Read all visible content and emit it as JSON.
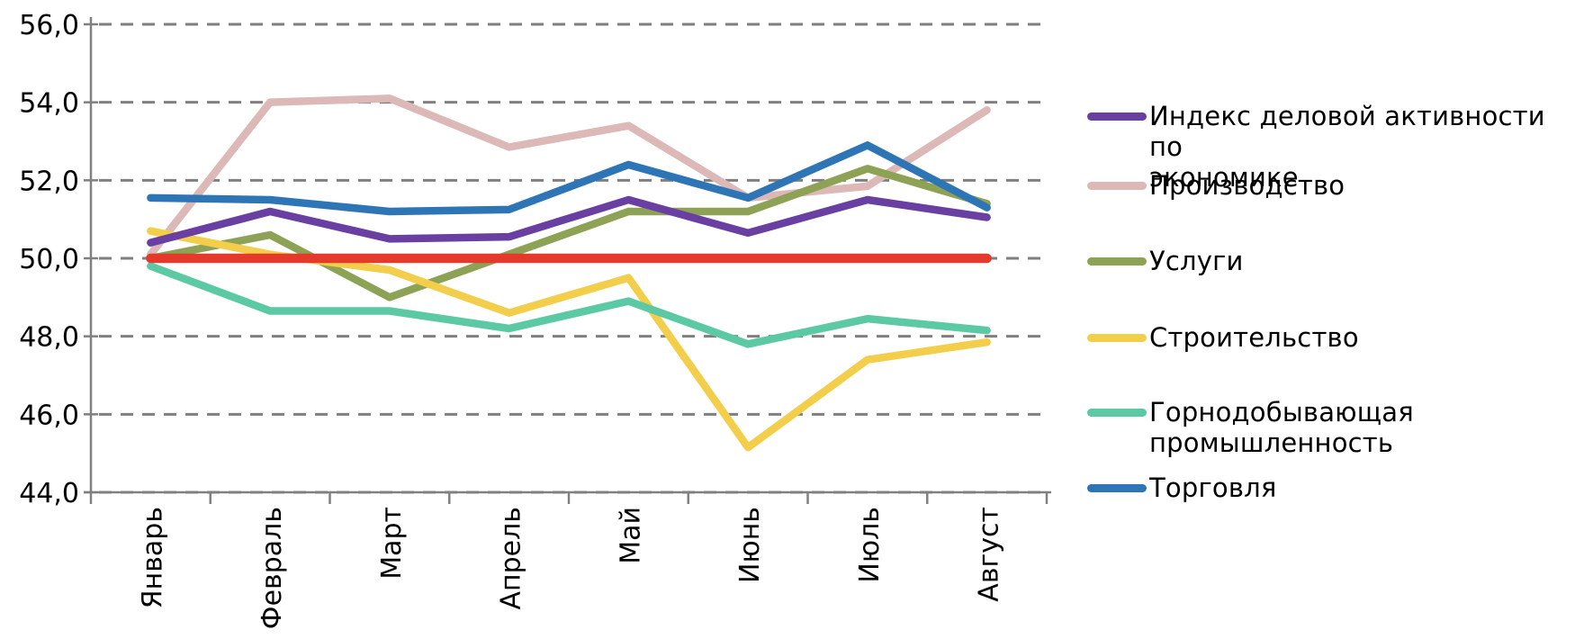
{
  "chart_data": {
    "type": "line",
    "title": "",
    "xlabel": "",
    "ylabel": "",
    "legend_position": "right",
    "grid": "horizontal-dashed",
    "categories": [
      "Январь",
      "Февраль",
      "Март",
      "Апрель",
      "Май",
      "Июнь",
      "Июль",
      "Август"
    ],
    "y_axis": {
      "min": 44.0,
      "max": 56.0,
      "step": 2.0,
      "tick_labels": [
        "44,0",
        "46,0",
        "48,0",
        "50,0",
        "52,0",
        "54,0",
        "56,0"
      ]
    },
    "series": [
      {
        "name": "Индекс деловой активности по\nэкономике",
        "color": "#6940A2",
        "values": [
          50.4,
          51.2,
          50.5,
          50.55,
          51.5,
          50.65,
          51.5,
          51.05
        ]
      },
      {
        "name": "Производство",
        "color": "#DCB8B6",
        "values": [
          50.1,
          54.0,
          54.1,
          52.85,
          53.4,
          51.55,
          51.85,
          53.8
        ]
      },
      {
        "name": "Услуги",
        "color": "#8DA254",
        "values": [
          50.0,
          50.6,
          49.0,
          50.1,
          51.2,
          51.2,
          52.3,
          51.4
        ]
      },
      {
        "name": "Строительство",
        "color": "#F2CE4B",
        "values": [
          50.7,
          50.1,
          49.7,
          48.6,
          49.5,
          45.15,
          47.4,
          47.85
        ]
      },
      {
        "name": "Горнодобывающая\nпромышленность",
        "color": "#5BC9A3",
        "values": [
          49.8,
          48.65,
          48.65,
          48.2,
          48.9,
          47.8,
          48.45,
          48.15
        ]
      },
      {
        "name": "Торговля",
        "color": "#2E75B6",
        "values": [
          51.55,
          51.5,
          51.2,
          51.25,
          52.4,
          51.55,
          52.9,
          51.3
        ]
      }
    ],
    "baseline": {
      "name": "reference-level-50",
      "value": 50.0,
      "color": "#E5392C"
    },
    "axis_color": "#808080",
    "grid_color": "#7F7F7F",
    "text_color": "#000000"
  }
}
